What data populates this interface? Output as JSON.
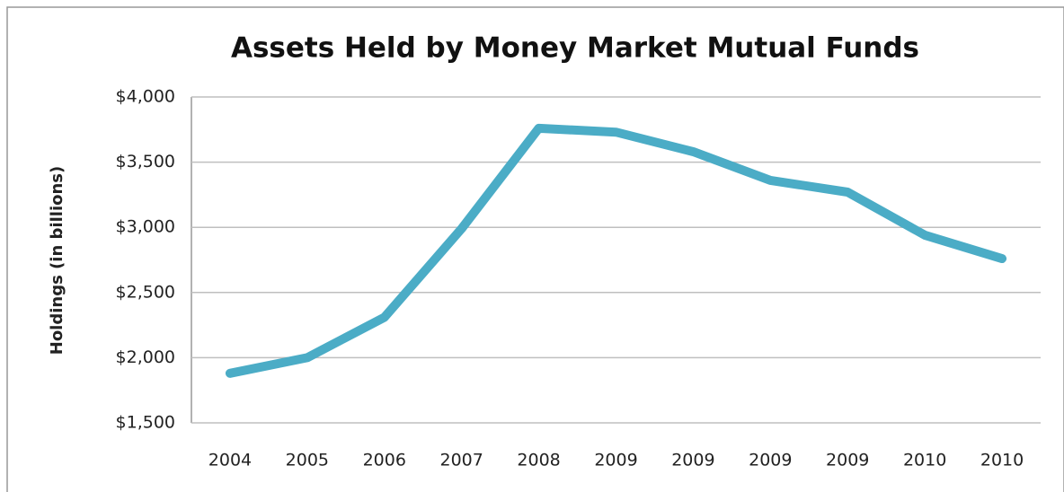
{
  "chart_data": {
    "type": "line",
    "title": "Assets Held by Money Market Mutual Funds",
    "y_label": "Holdings (in billions)",
    "categories": [
      "2004",
      "2005",
      "2006",
      "2007",
      "2008",
      "2009",
      "2009",
      "2009",
      "2009",
      "2010",
      "2010"
    ],
    "series": [
      {
        "name": "Holdings",
        "color": "#4bacc6",
        "values": [
          1880,
          2000,
          2310,
          2990,
          3760,
          3730,
          3580,
          3360,
          3270,
          2940,
          2760
        ]
      }
    ],
    "ylim": [
      1500,
      4000
    ],
    "yticks": [
      {
        "value": 1500,
        "label": "$1,500"
      },
      {
        "value": 2000,
        "label": "$2,000"
      },
      {
        "value": 2500,
        "label": "$2,500"
      },
      {
        "value": 3000,
        "label": "$3,000"
      },
      {
        "value": 3500,
        "label": "$3,500"
      },
      {
        "value": 4000,
        "label": "$4,000"
      }
    ],
    "grid": true
  }
}
